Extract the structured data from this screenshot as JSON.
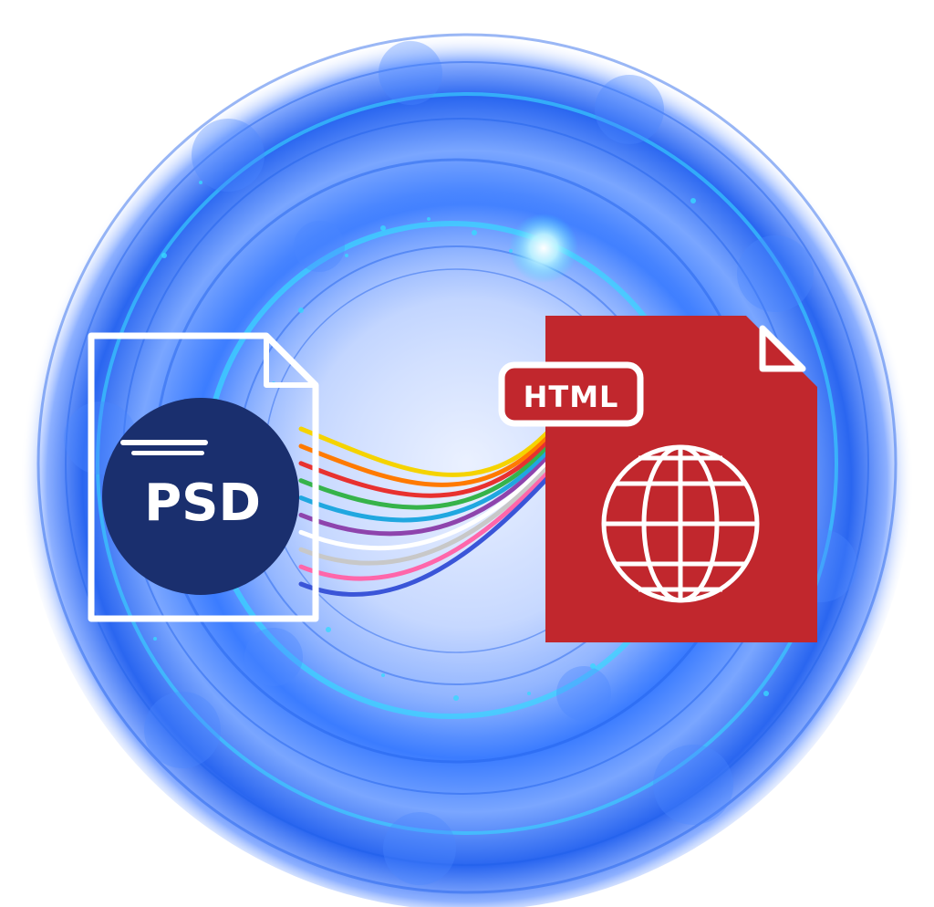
{
  "psd_icon": {
    "label": "PSD",
    "badge_color": "#1a2f6e",
    "outline_color": "#ffffff"
  },
  "html_icon": {
    "label": "HTML",
    "page_color": "#c1272d",
    "tag_color": "#ffffff",
    "globe_icon": "globe-icon"
  },
  "background": {
    "glow_color": "#2f7bff",
    "ring_color": "#1f5fe8",
    "highlight_color": "#37d8ff"
  },
  "cable_colors": [
    "#f5d300",
    "#ff7a00",
    "#e8312f",
    "#36b34a",
    "#20a7e0",
    "#8e44ad",
    "#ffffff",
    "#c8c8c8",
    "#ff66aa",
    "#3a55d8"
  ]
}
